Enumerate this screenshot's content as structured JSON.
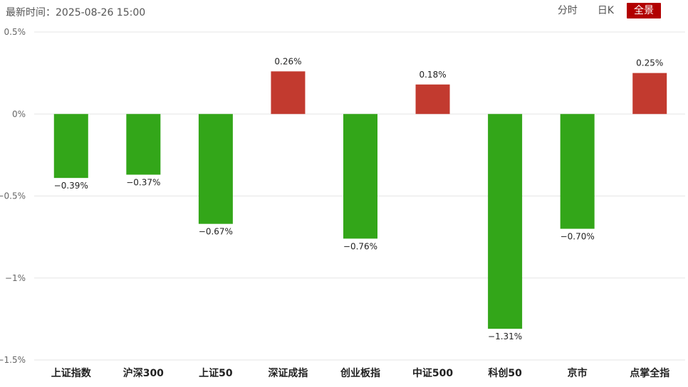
{
  "header": {
    "update_label": "最新时间：",
    "update_time": "2025-08-26 15:00",
    "tabs": [
      "分时",
      "日K",
      "全景"
    ],
    "active_tab": "全景"
  },
  "chart_data": {
    "type": "bar",
    "categories": [
      "上证指数",
      "沪深300",
      "上证50",
      "深证成指",
      "创业板指",
      "中证500",
      "科创50",
      "京市",
      "点掌全指"
    ],
    "values": [
      -0.39,
      -0.37,
      -0.67,
      0.26,
      -0.76,
      0.18,
      -1.31,
      -0.7,
      0.25
    ],
    "value_labels": [
      "−0.39%",
      "−0.37%",
      "−0.67%",
      "0.26%",
      "−0.76%",
      "0.18%",
      "−1.31%",
      "−0.70%",
      "0.25%"
    ],
    "y_ticks": [
      0.5,
      0,
      -0.5,
      -1,
      -1.5
    ],
    "y_tick_labels": [
      "0.5%",
      "0%",
      "−0.5%",
      "−1%",
      "−1.5%"
    ],
    "ylim": [
      -1.5,
      0.5
    ],
    "grid": true,
    "colors": {
      "positive": "#c23a2f",
      "negative": "#33a619",
      "grid": "#e6e6e6",
      "active_tab": "#b20000"
    }
  }
}
